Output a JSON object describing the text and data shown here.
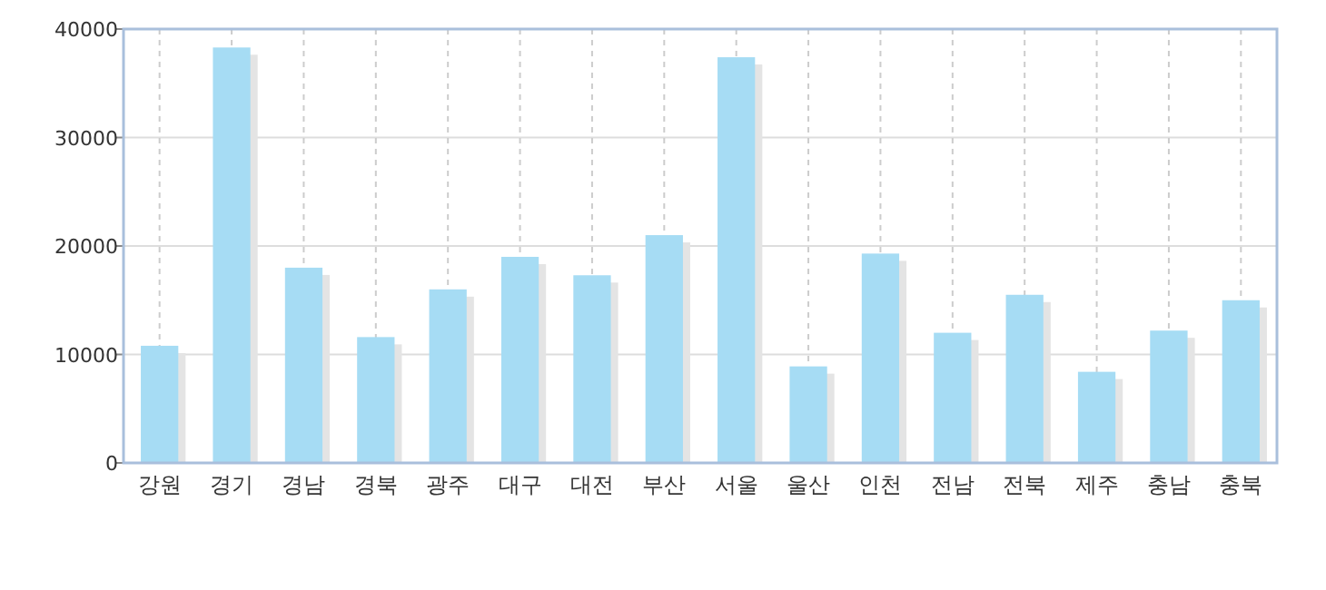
{
  "chart_data": {
    "type": "bar",
    "categories": [
      "강원",
      "경기",
      "경남",
      "경북",
      "광주",
      "대구",
      "대전",
      "부산",
      "서울",
      "울산",
      "인천",
      "전남",
      "전북",
      "제주",
      "충남",
      "충북"
    ],
    "series": [
      {
        "color": "#a6dcf4",
        "values": [
          10800,
          38300,
          18000,
          11600,
          16000,
          19000,
          17300,
          21000,
          37400,
          8900,
          19300,
          12000,
          15500,
          8400,
          12200,
          15000
        ]
      }
    ],
    "ylim": [
      0,
      40000
    ],
    "yticks": [
      0,
      10000,
      20000,
      30000,
      40000
    ],
    "grid": true
  }
}
